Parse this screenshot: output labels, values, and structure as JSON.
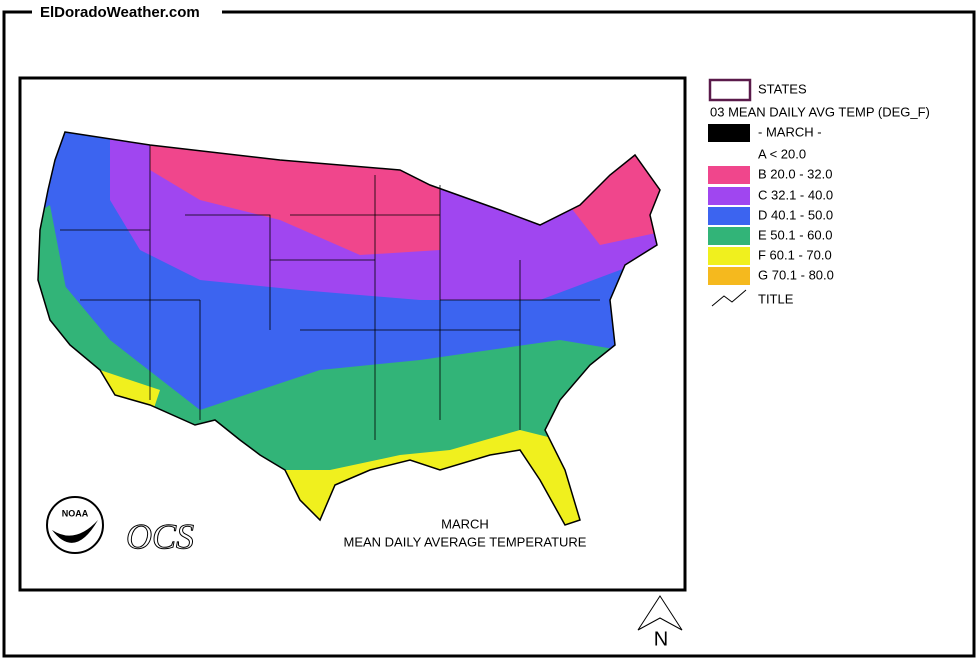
{
  "header": {
    "title": "ElDoradoWeather.com"
  },
  "map": {
    "caption_month": "MARCH",
    "caption_title": "MEAN DAILY AVERAGE TEMPERATURE",
    "logo_text": "NOAA",
    "agency": "OCS",
    "north_label": "N"
  },
  "legend": {
    "states_label": "STATES",
    "layer_title": "03 MEAN DAILY AVG TEMP (DEG_F)",
    "items": [
      {
        "label": "- MARCH -",
        "color": "#000000"
      },
      {
        "label": "A < 20.0"
      },
      {
        "label": "B 20.0 - 32.0",
        "color": "#f0468c"
      },
      {
        "label": "C 32.1 - 40.0",
        "color": "#a046f0"
      },
      {
        "label": "D 40.1 - 50.0",
        "color": "#3c64f0"
      },
      {
        "label": "E 50.1 - 60.0",
        "color": "#32b478"
      },
      {
        "label": "F 60.1 - 70.0",
        "color": "#f0f01e"
      },
      {
        "label": "G 70.1 - 80.0",
        "color": "#f5b91e"
      }
    ],
    "title_label": "TITLE"
  }
}
